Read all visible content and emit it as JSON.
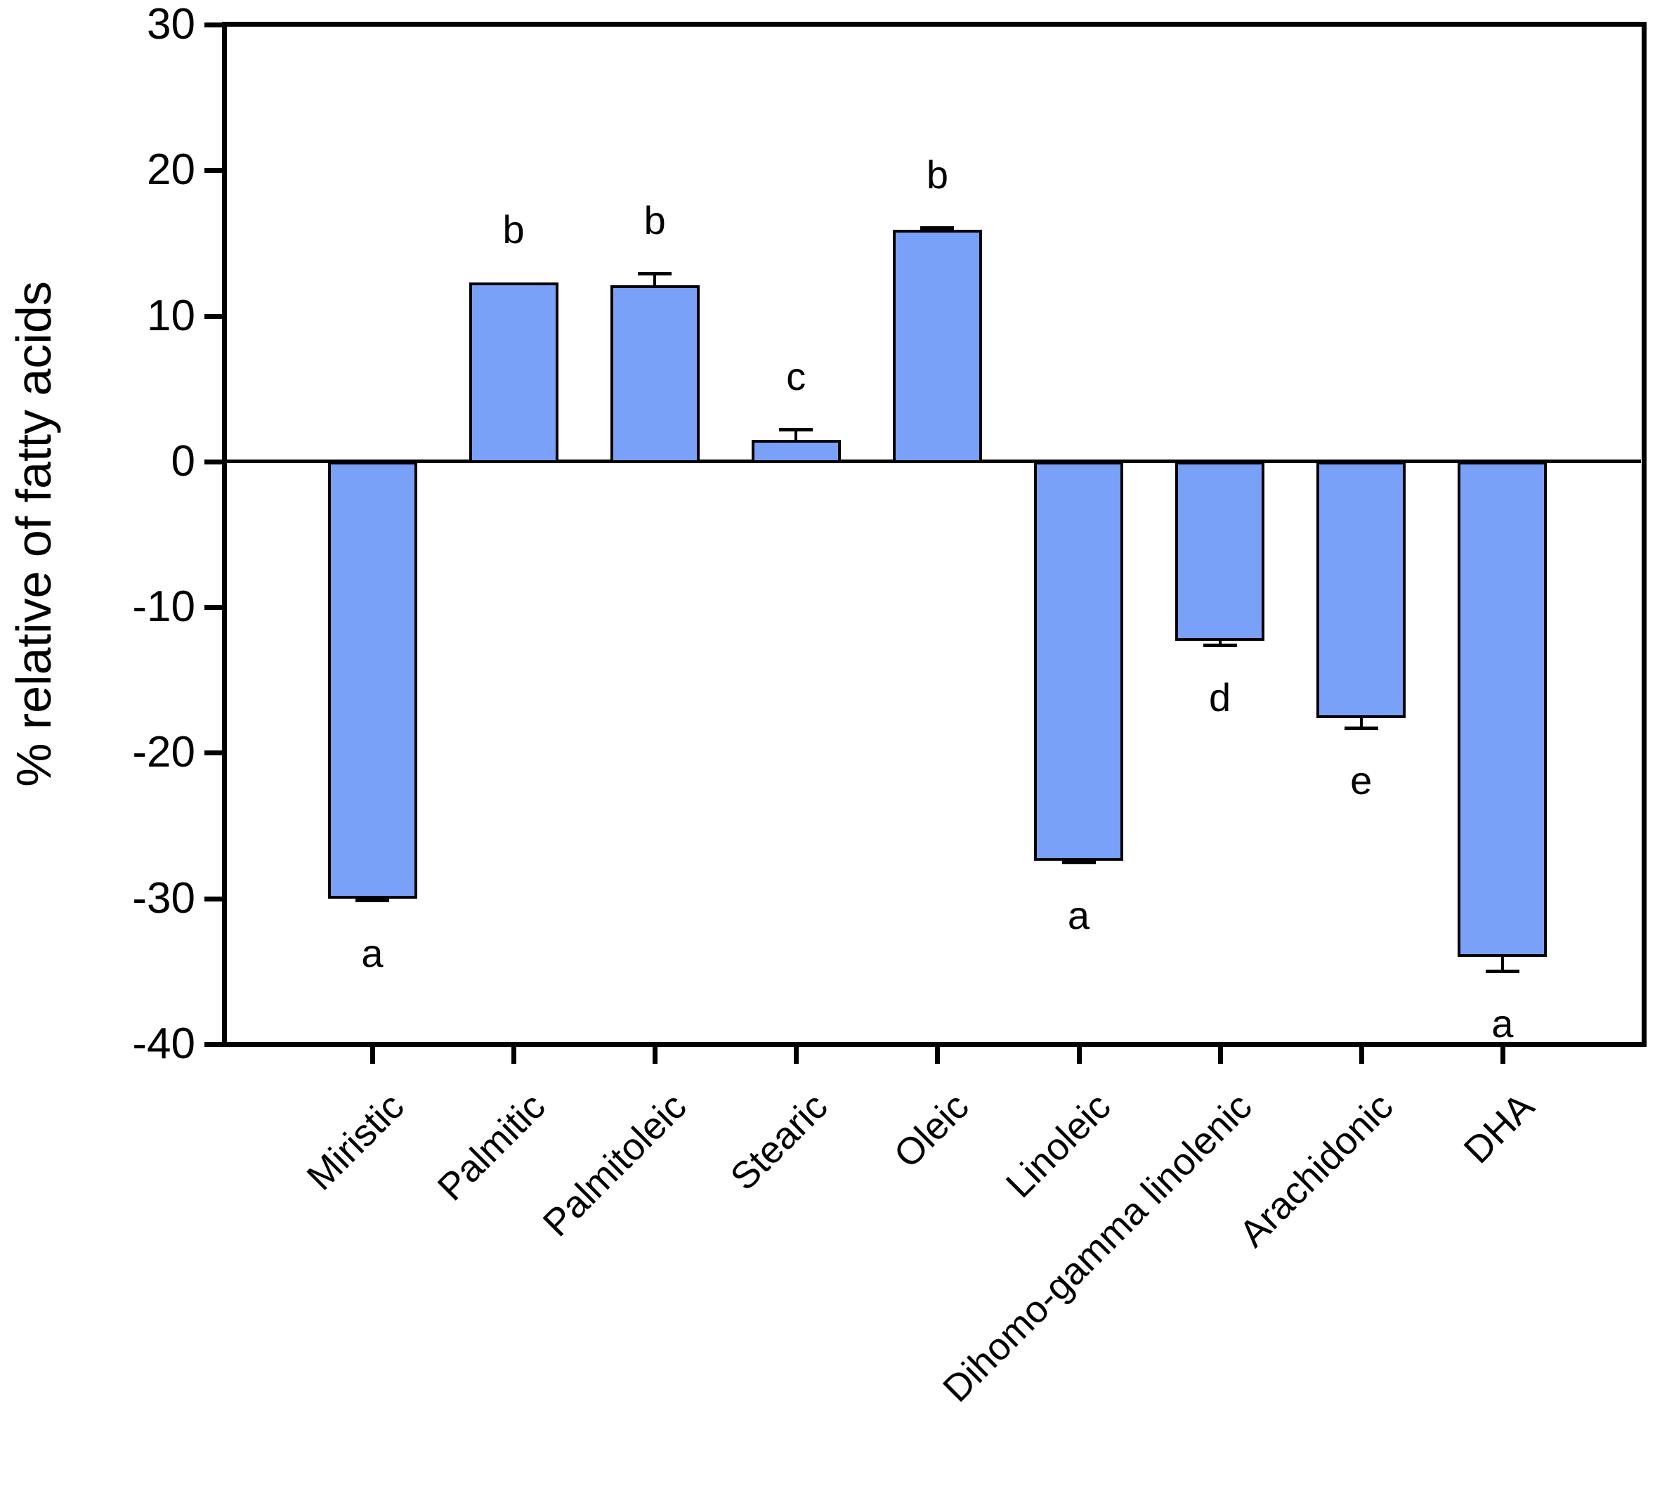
{
  "figure": {
    "background": "#ffffff",
    "bar_fill": "#7aa1f8",
    "bar_stroke": "#000000",
    "axis_color": "#000000"
  },
  "chart_data": {
    "type": "bar",
    "title": "",
    "xlabel": "",
    "ylabel": "% relative of fatty acids",
    "ylim": [
      -40,
      30
    ],
    "yticks": [
      30,
      20,
      10,
      0,
      -10,
      -20,
      -30,
      -40
    ],
    "ytick_labels": [
      "30",
      "20",
      "10",
      "0",
      "-10",
      "-20",
      "-30",
      "-40"
    ],
    "grid": false,
    "legend_position": "none",
    "categories": [
      "Miristic",
      "Palmitic",
      "Palmitoleic",
      "Stearic",
      "Oleic",
      "Linoleic",
      "Dihomo-gamma linolenic",
      "Arachidonic",
      "DHA"
    ],
    "series": [
      {
        "name": "% relative of fatty acids",
        "values": [
          -29.9,
          12.3,
          12.1,
          1.5,
          15.9,
          -27.3,
          -12.2,
          -17.5,
          -33.9
        ],
        "errors": [
          0.25,
          0,
          0.8,
          0.7,
          0.15,
          0.25,
          0.4,
          0.8,
          1.1
        ]
      }
    ],
    "significance_letters": [
      "a",
      "b",
      "b",
      "c",
      "b",
      "a",
      "d",
      "e",
      "a"
    ]
  }
}
